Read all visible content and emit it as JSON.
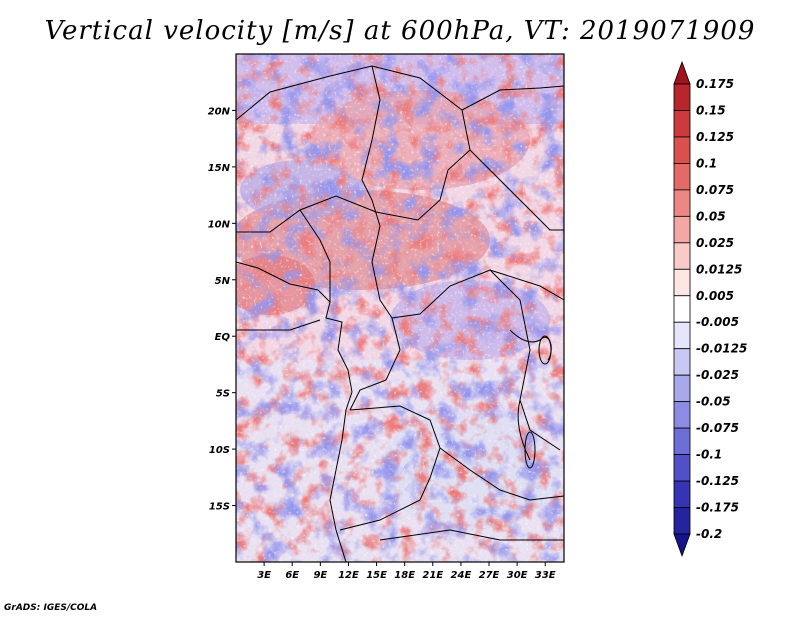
{
  "title": "Vertical velocity [m/s] at 600hPa, VT: 2019071909",
  "credit": "GrADS: IGES/COLA",
  "map": {
    "lat_labels": [
      {
        "label": "20N",
        "lat": 20
      },
      {
        "label": "15N",
        "lat": 15
      },
      {
        "label": "10N",
        "lat": 10
      },
      {
        "label": "5N",
        "lat": 5
      },
      {
        "label": "EQ",
        "lat": 0
      },
      {
        "label": "5S",
        "lat": -5
      },
      {
        "label": "10S",
        "lat": -10
      },
      {
        "label": "15S",
        "lat": -15
      }
    ],
    "lon_labels": [
      {
        "label": "3E",
        "lon": 3
      },
      {
        "label": "6E",
        "lon": 6
      },
      {
        "label": "9E",
        "lon": 9
      },
      {
        "label": "12E",
        "lon": 12
      },
      {
        "label": "15E",
        "lon": 15
      },
      {
        "label": "18E",
        "lon": 18
      },
      {
        "label": "21E",
        "lon": 21
      },
      {
        "label": "24E",
        "lon": 24
      },
      {
        "label": "27E",
        "lon": 27
      },
      {
        "label": "30E",
        "lon": 30
      },
      {
        "label": "33E",
        "lon": 33
      }
    ],
    "extent": {
      "lon_min": 0,
      "lon_max": 35,
      "lat_min": -20,
      "lat_max": 25
    }
  },
  "colorbar": {
    "levels": [
      "0.175",
      "0.15",
      "0.125",
      "0.1",
      "0.075",
      "0.05",
      "0.025",
      "0.0125",
      "0.005",
      "-0.005",
      "-0.0125",
      "-0.025",
      "-0.05",
      "-0.075",
      "-0.1",
      "-0.125",
      "-0.175",
      "-0.2"
    ],
    "colors": [
      "#a0141e",
      "#b8262b",
      "#cc3a3b",
      "#d9504d",
      "#e36a66",
      "#ec8884",
      "#f3a8a4",
      "#f9cac7",
      "#fde6e4",
      "#ffffff",
      "#e6e6fa",
      "#c8c8f2",
      "#a8a8ea",
      "#8c8ce2",
      "#6e6ed8",
      "#5050c8",
      "#3434b4",
      "#24249e",
      "#14148c"
    ]
  }
}
